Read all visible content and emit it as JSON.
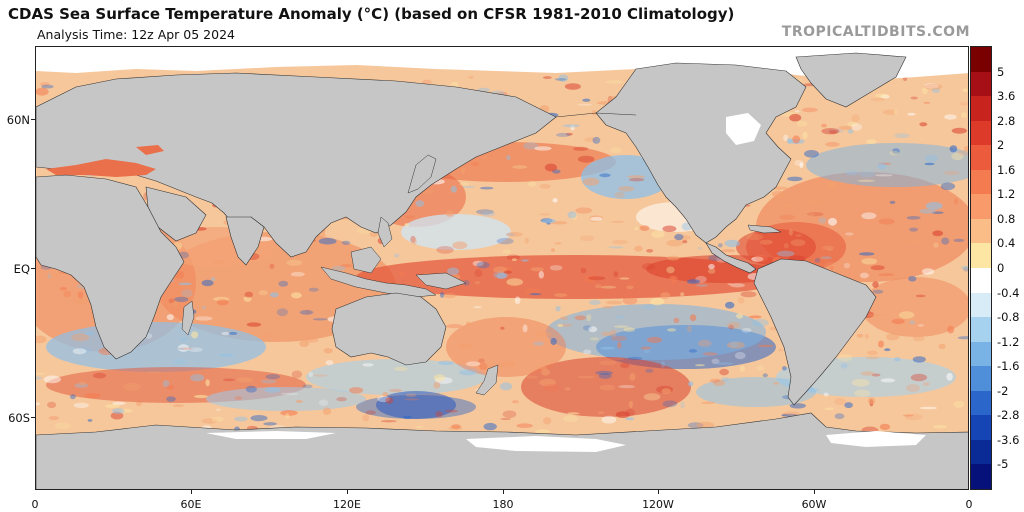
{
  "title": "CDAS Sea Surface Temperature Anomaly (°C) (based on CFSR 1981-2010 Climatology)",
  "subtitle": "Analysis Time: 12z Apr 05 2024",
  "site": "TROPICALTIDBITS.COM",
  "lat_labels": [
    "60N",
    "EQ",
    "60S"
  ],
  "lon_labels": [
    "0",
    "60E",
    "120E",
    "180",
    "120W",
    "60W",
    "0"
  ],
  "colorbar": {
    "labels": [
      "5",
      "3.6",
      "2.8",
      "2",
      "1.6",
      "1.2",
      "0.8",
      "0.4",
      "0",
      "-0.4",
      "-0.8",
      "-1.2",
      "-1.6",
      "-2",
      "-2.8",
      "-3.6",
      "-5"
    ],
    "colors": [
      "#7a0000",
      "#a50f15",
      "#c8231d",
      "#de3a2a",
      "#ec5b3c",
      "#f47a50",
      "#f89a6a",
      "#fbbd87",
      "#fde6a4",
      "#ffffff",
      "#d7ecf7",
      "#a6d1ef",
      "#79b3e6",
      "#4f8fda",
      "#2b66cb",
      "#1544b4",
      "#0a2a96",
      "#06127a"
    ]
  },
  "colors": {
    "land": "#c6c6c6",
    "ice": "#ffffff",
    "warm": "#f3a06e",
    "hot": "#d9412f",
    "cool": "#8ec2ea",
    "cold": "#2d68c9"
  }
}
